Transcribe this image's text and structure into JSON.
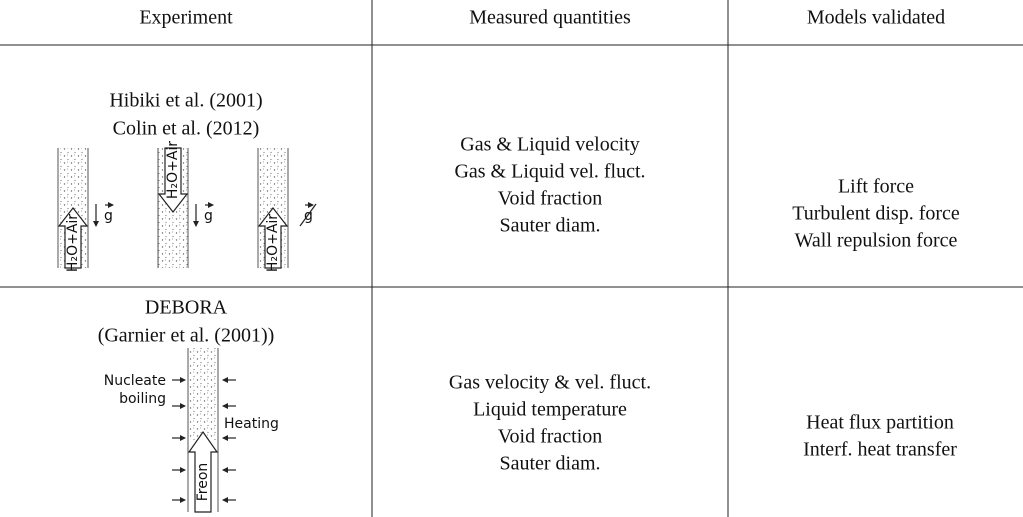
{
  "table": {
    "header": [
      "Experiment",
      "Measured quantities",
      "Models validated"
    ],
    "rows": [
      {
        "experiment": [
          "Hibiki et al. (2001)",
          "Colin et al. (2012)"
        ],
        "measured": [
          "Gas & Liquid velocity",
          "Gas & Liquid vel. fluct.",
          "Void fraction",
          "Sauter diam."
        ],
        "models": [
          "Lift force",
          "Turbulent disp. force",
          "Wall repulsion force"
        ],
        "diagram_labels": [
          "H₂O+Air",
          "g",
          "H₂O+Air",
          "g",
          "H₂O+Air",
          "g"
        ]
      },
      {
        "experiment": [
          "DEBORA",
          "(Garnier et al. (2001))"
        ],
        "measured": [
          "Gas velocity & vel. fluct.",
          "Liquid temperature",
          "Void fraction",
          "Sauter diam."
        ],
        "models": [
          "Heat flux partition",
          "Interf. heat transfer"
        ],
        "diagram_labels": [
          "Nucleate",
          "boiling",
          "Heating",
          "Freon"
        ]
      }
    ]
  }
}
